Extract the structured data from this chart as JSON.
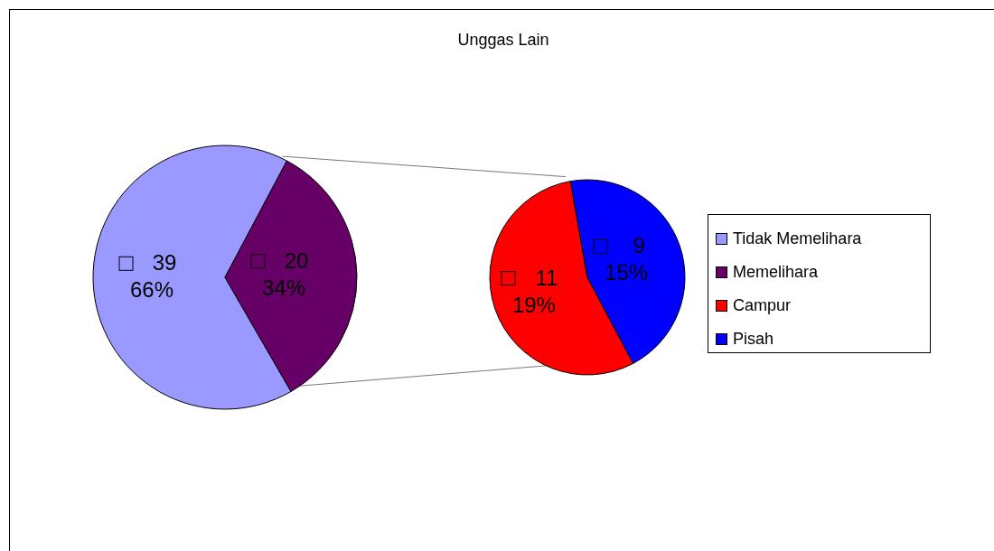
{
  "chart_data": [
    {
      "type": "pie",
      "title": "Unggas Lain",
      "categories": [
        "Tidak Memelihara",
        "Memelihara"
      ],
      "values": [
        39,
        20
      ],
      "colors": [
        "#9999ff",
        "#660066"
      ],
      "value_labels": [
        "39\n66%",
        "20\n34%"
      ],
      "legend": "right"
    },
    {
      "type": "pie",
      "categories": [
        "Campur",
        "Pisah"
      ],
      "values": [
        11,
        9
      ],
      "colors": [
        "#ff0000",
        "#0000ff"
      ],
      "value_labels": [
        "11\n19%",
        "9\n15%"
      ],
      "legend": "right"
    }
  ]
}
